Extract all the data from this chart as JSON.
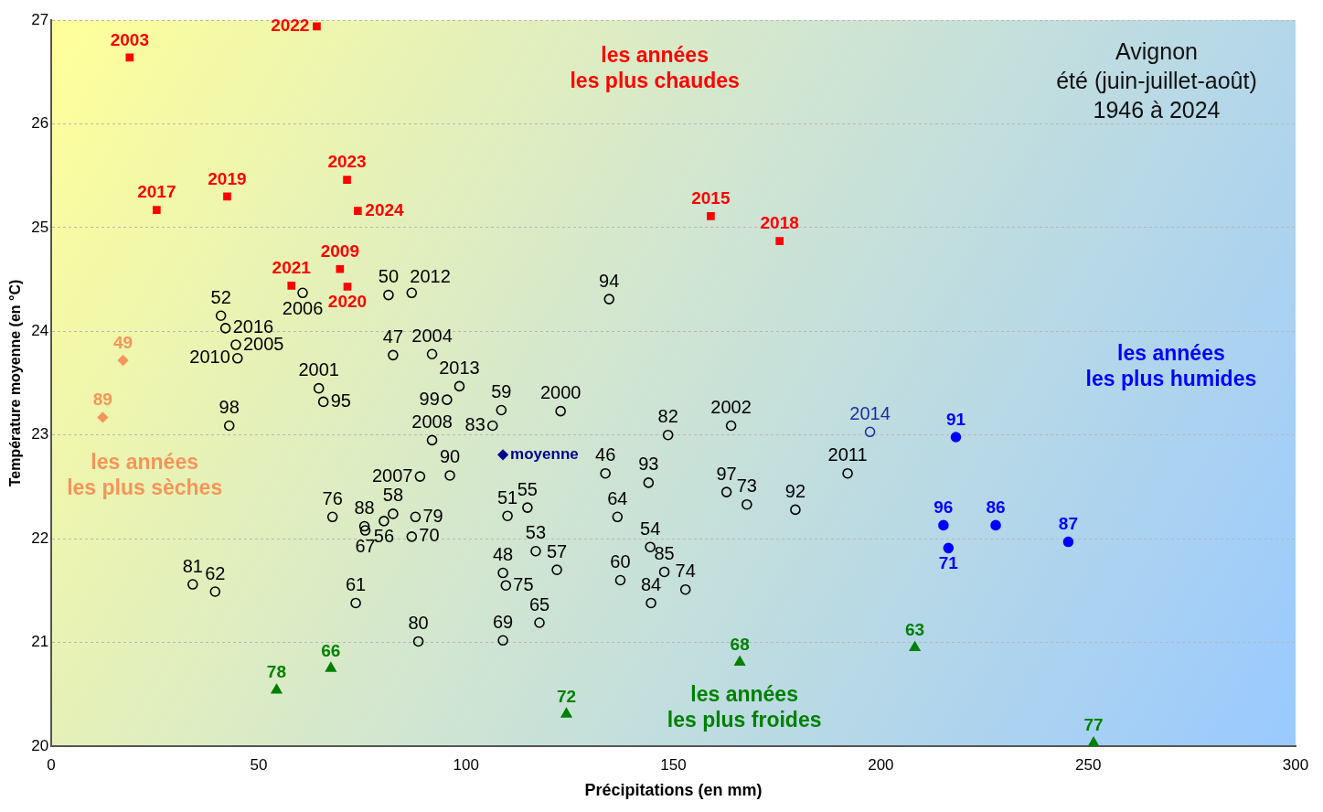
{
  "chart_data": {
    "type": "scatter",
    "title": "Avignon",
    "subtitle": "été (juin-juillet-août)\n1946 à 2024",
    "xlabel": "Précipitations (en mm)",
    "ylabel": "Température moyenne (en °C)",
    "xlim": [
      0,
      300
    ],
    "xticks": [
      0,
      50,
      100,
      150,
      200,
      250,
      300
    ],
    "ylim": [
      20,
      27
    ],
    "yticks": [
      20,
      21,
      22,
      23,
      24,
      25,
      26,
      27
    ],
    "grid": "y",
    "annotations": [
      "les années\nles plus chaudes",
      "les années\nles plus humides",
      "les années\nles plus sèches",
      "les années\nles plus froides",
      {
        "text": "50",
        "x": 81.3,
        "y": 24.35
      },
      {
        "text": "2012",
        "x": 86.9,
        "y": 24.37
      },
      {
        "text": "2006",
        "x": 60.6,
        "y": 24.37
      },
      {
        "text": "52",
        "x": 40.9,
        "y": 24.15
      },
      {
        "text": "2016",
        "x": 42.0,
        "y": 24.03
      },
      {
        "text": "2005",
        "x": 44.5,
        "y": 23.87
      },
      {
        "text": "2010",
        "x": 44.9,
        "y": 23.74
      },
      {
        "text": "47",
        "x": 82.4,
        "y": 23.77
      },
      {
        "text": "2004",
        "x": 91.8,
        "y": 23.78
      },
      {
        "text": "2001",
        "x": 64.5,
        "y": 23.45
      },
      {
        "text": "95",
        "x": 65.6,
        "y": 23.32
      },
      {
        "text": "2013",
        "x": 98.4,
        "y": 23.47
      },
      {
        "text": "99",
        "x": 95.4,
        "y": 23.34
      },
      {
        "text": "59",
        "x": 108.5,
        "y": 23.24
      },
      {
        "text": "83",
        "x": 106.4,
        "y": 23.09
      },
      {
        "text": "2000",
        "x": 122.8,
        "y": 23.23
      },
      {
        "text": "98",
        "x": 42.9,
        "y": 23.09
      },
      {
        "text": "2008",
        "x": 91.8,
        "y": 22.95
      },
      {
        "text": "94",
        "x": 134.5,
        "y": 24.31
      },
      {
        "text": "82",
        "x": 148.7,
        "y": 23.0
      },
      {
        "text": "2002",
        "x": 163.9,
        "y": 23.09
      },
      {
        "text": "46",
        "x": 133.6,
        "y": 22.63
      },
      {
        "text": "93",
        "x": 144.0,
        "y": 22.54
      },
      {
        "text": "2007",
        "x": 88.9,
        "y": 22.6
      },
      {
        "text": "90",
        "x": 96.1,
        "y": 22.61
      },
      {
        "text": "97",
        "x": 162.8,
        "y": 22.45
      },
      {
        "text": "73",
        "x": 167.7,
        "y": 22.33
      },
      {
        "text": "92",
        "x": 179.4,
        "y": 22.28
      },
      {
        "text": "2011",
        "x": 192.0,
        "y": 22.63
      },
      {
        "text": "51",
        "x": 110.0,
        "y": 22.22
      },
      {
        "text": "55",
        "x": 114.8,
        "y": 22.3
      },
      {
        "text": "64",
        "x": 136.5,
        "y": 22.21
      },
      {
        "text": "76",
        "x": 67.8,
        "y": 22.21
      },
      {
        "text": "88",
        "x": 75.5,
        "y": 22.12
      },
      {
        "text": "67",
        "x": 75.7,
        "y": 22.08
      },
      {
        "text": "58",
        "x": 82.4,
        "y": 22.24
      },
      {
        "text": "56",
        "x": 80.2,
        "y": 22.17
      },
      {
        "text": "79",
        "x": 87.8,
        "y": 22.21
      },
      {
        "text": "70",
        "x": 86.9,
        "y": 22.02
      },
      {
        "text": "81",
        "x": 34.1,
        "y": 21.56
      },
      {
        "text": "62",
        "x": 39.5,
        "y": 21.49
      },
      {
        "text": "61",
        "x": 73.4,
        "y": 21.38
      },
      {
        "text": "80",
        "x": 88.5,
        "y": 21.01
      },
      {
        "text": "53",
        "x": 116.8,
        "y": 21.88
      },
      {
        "text": "48",
        "x": 108.9,
        "y": 21.67
      },
      {
        "text": "75",
        "x": 109.6,
        "y": 21.55
      },
      {
        "text": "57",
        "x": 121.9,
        "y": 21.7
      },
      {
        "text": "60",
        "x": 137.2,
        "y": 21.6
      },
      {
        "text": "54",
        "x": 144.4,
        "y": 21.92
      },
      {
        "text": "85",
        "x": 147.8,
        "y": 21.68
      },
      {
        "text": "74",
        "x": 152.9,
        "y": 21.51
      },
      {
        "text": "84",
        "x": 144.6,
        "y": 21.38
      },
      {
        "text": "65",
        "x": 117.7,
        "y": 21.19
      },
      {
        "text": "69",
        "x": 108.9,
        "y": 21.02
      },
      {
        "text": "2014",
        "x": 197.4,
        "y": 23.03
      },
      {
        "text": "moyenne",
        "x": 108.9,
        "y": 22.81
      },
      {
        "text": "2003",
        "x": 18.9,
        "y": 26.64
      },
      {
        "text": "2022",
        "x": 64.0,
        "y": 26.94
      },
      {
        "text": "2019",
        "x": 42.4,
        "y": 25.3
      },
      {
        "text": "2017",
        "x": 25.4,
        "y": 25.17
      },
      {
        "text": "2023",
        "x": 71.3,
        "y": 25.46
      },
      {
        "text": "2024",
        "x": 73.9,
        "y": 25.16
      },
      {
        "text": "2015",
        "x": 159.0,
        "y": 25.11
      },
      {
        "text": "2018",
        "x": 175.6,
        "y": 24.87
      },
      {
        "text": "2021",
        "x": 57.9,
        "y": 24.44
      },
      {
        "text": "2009",
        "x": 69.6,
        "y": 24.6
      },
      {
        "text": "2020",
        "x": 71.4,
        "y": 24.43
      },
      {
        "text": "49",
        "x": 17.3,
        "y": 23.72
      },
      {
        "text": "89",
        "x": 12.4,
        "y": 23.17
      },
      {
        "text": "91",
        "x": 218.1,
        "y": 22.98
      },
      {
        "text": "96",
        "x": 215.1,
        "y": 22.13
      },
      {
        "text": "86",
        "x": 227.7,
        "y": 22.13
      },
      {
        "text": "71",
        "x": 216.3,
        "y": 21.91
      },
      {
        "text": "87",
        "x": 245.2,
        "y": 21.97
      },
      {
        "text": "78",
        "x": 54.3,
        "y": 20.54
      },
      {
        "text": "66",
        "x": 67.4,
        "y": 20.75
      },
      {
        "text": "68",
        "x": 166.0,
        "y": 20.81
      },
      {
        "text": "72",
        "x": 124.2,
        "y": 20.31
      },
      {
        "text": "63",
        "x": 208.2,
        "y": 20.95
      },
      {
        "text": "77",
        "x": 251.3,
        "y": 20.03
      }
    ],
    "series": [
      {
        "color": "#000000",
        "marker": "circle",
        "x": [
          81.3,
          86.9,
          60.6,
          40.9,
          42.0,
          44.5,
          44.9,
          82.4,
          91.8,
          64.5,
          65.6,
          98.4,
          95.4,
          108.5,
          106.4,
          122.8,
          42.9,
          91.8,
          134.5,
          148.7,
          163.9,
          133.6,
          144.0,
          88.9,
          96.1,
          162.8,
          167.7,
          179.4,
          192.0,
          110.0,
          114.8,
          136.5,
          67.8,
          75.5,
          75.7,
          82.4,
          80.2,
          87.8,
          86.9,
          34.1,
          39.5,
          73.4,
          88.5,
          116.8,
          108.9,
          109.6,
          121.9,
          137.2,
          144.4,
          147.8,
          152.9,
          144.6,
          117.7,
          108.9
        ],
        "values": [
          24.35,
          24.37,
          24.37,
          24.15,
          24.03,
          23.87,
          23.74,
          23.77,
          23.78,
          23.45,
          23.32,
          23.47,
          23.34,
          23.24,
          23.09,
          23.23,
          23.09,
          22.95,
          24.31,
          23.0,
          23.09,
          22.63,
          22.54,
          22.6,
          22.61,
          22.45,
          22.33,
          22.28,
          22.63,
          22.22,
          22.3,
          22.21,
          22.21,
          22.12,
          22.08,
          22.24,
          22.17,
          22.21,
          22.02,
          21.56,
          21.49,
          21.38,
          21.01,
          21.88,
          21.67,
          21.55,
          21.7,
          21.6,
          21.92,
          21.68,
          21.51,
          21.38,
          21.19,
          21.02
        ]
      },
      {
        "color": "#1f2f9f",
        "marker": "circle",
        "x": [
          197.4
        ],
        "values": [
          23.03
        ]
      },
      {
        "color": "#00008b",
        "marker": "diamond",
        "x": [
          108.9
        ],
        "values": [
          22.81
        ]
      },
      {
        "color": "#ff0000",
        "marker": "square",
        "x": [
          18.9,
          64.0,
          42.4,
          25.4,
          71.3,
          73.9,
          159.0,
          175.6,
          57.9,
          69.6,
          71.4
        ],
        "values": [
          26.64,
          26.94,
          25.3,
          25.17,
          25.46,
          25.16,
          25.11,
          24.87,
          24.44,
          24.6,
          24.43
        ]
      },
      {
        "color": "#f4955a",
        "marker": "diamond",
        "x": [
          17.3,
          12.4
        ],
        "values": [
          23.72,
          23.17
        ]
      },
      {
        "color": "#0000ff",
        "marker": "circle",
        "x": [
          218.1,
          215.1,
          227.7,
          216.3,
          245.2
        ],
        "values": [
          22.98,
          22.13,
          22.13,
          21.91,
          21.97
        ]
      },
      {
        "color": "#008000",
        "marker": "triangle",
        "x": [
          54.3,
          67.4,
          166.0,
          124.2,
          208.2,
          251.3
        ],
        "values": [
          20.54,
          20.75,
          20.81,
          20.31,
          20.95,
          20.03
        ]
      }
    ]
  }
}
